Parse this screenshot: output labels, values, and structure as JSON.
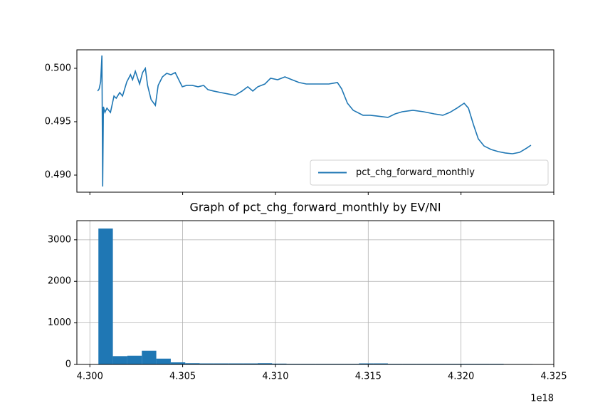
{
  "chart_data": [
    {
      "type": "line",
      "x": [
        4.30042,
        4.3005,
        4.30058,
        4.30065,
        4.30069,
        4.30073,
        4.30081,
        4.30092,
        4.30111,
        4.3013,
        4.30142,
        4.30161,
        4.30176,
        4.30199,
        4.30219,
        4.3023,
        4.30245,
        4.30268,
        4.30284,
        4.30299,
        4.30311,
        4.3033,
        4.30353,
        4.30368,
        4.30391,
        4.30414,
        4.30437,
        4.3046,
        4.30475,
        4.30498,
        4.30521,
        4.30552,
        4.30583,
        4.30613,
        4.30636,
        4.30667,
        4.30705,
        4.30744,
        4.30782,
        4.3082,
        4.30851,
        4.30878,
        4.30905,
        4.30943,
        4.30974,
        4.31012,
        4.31051,
        4.31089,
        4.31127,
        4.31166,
        4.31204,
        4.3125,
        4.31288,
        4.31334,
        4.31357,
        4.31388,
        4.31419,
        4.31472,
        4.31511,
        4.31549,
        4.31606,
        4.31645,
        4.31683,
        4.31741,
        4.31798,
        4.31856,
        4.31902,
        4.3194,
        4.31978,
        4.32017,
        4.3204,
        4.32067,
        4.32093,
        4.32124,
        4.32162,
        4.32201,
        4.32239,
        4.32277,
        4.32316,
        4.32354,
        4.32377
      ],
      "series": [
        {
          "name": "pct_chg_forward_monthly",
          "color": "#1f77b4",
          "values": [
            0.49787,
            0.49807,
            0.49873,
            0.5012,
            0.48893,
            0.4964,
            0.49587,
            0.49627,
            0.49587,
            0.4974,
            0.4972,
            0.49773,
            0.4974,
            0.49873,
            0.4994,
            0.49893,
            0.49973,
            0.49853,
            0.4996,
            0.5,
            0.4984,
            0.49707,
            0.49653,
            0.4984,
            0.4992,
            0.49953,
            0.4994,
            0.4996,
            0.49907,
            0.49827,
            0.4984,
            0.4984,
            0.49827,
            0.4984,
            0.498,
            0.49787,
            0.49773,
            0.4976,
            0.49747,
            0.49787,
            0.49827,
            0.49787,
            0.49827,
            0.49853,
            0.49907,
            0.49893,
            0.4992,
            0.49893,
            0.49867,
            0.49853,
            0.49853,
            0.49853,
            0.49853,
            0.49867,
            0.49807,
            0.49673,
            0.49607,
            0.4956,
            0.4956,
            0.49553,
            0.4954,
            0.49573,
            0.49593,
            0.49607,
            0.49593,
            0.49573,
            0.4956,
            0.49587,
            0.49627,
            0.49673,
            0.49627,
            0.49473,
            0.4934,
            0.49273,
            0.4924,
            0.4922,
            0.49207,
            0.492,
            0.49213,
            0.49253,
            0.4928
          ]
        }
      ],
      "xlim": [
        4.2993,
        4.325
      ],
      "ylim": [
        0.4884,
        0.50173
      ],
      "yticks": [
        {
          "value": 0.49,
          "label": "0.490"
        },
        {
          "value": 0.495,
          "label": "0.495"
        },
        {
          "value": 0.5,
          "label": "0.500"
        }
      ],
      "legend": "lower right"
    },
    {
      "type": "histogram",
      "title": "Graph of pct_chg_forward_monthly by EV/NI",
      "color": "#1f77b4",
      "bins": [
        4.30046,
        4.30124,
        4.30202,
        4.3028,
        4.30358,
        4.30436,
        4.30514,
        4.30592,
        4.3067,
        4.30748,
        4.30826,
        4.30904,
        4.30982,
        4.3106,
        4.31138,
        4.31216,
        4.31294,
        4.31372,
        4.3145,
        4.31528,
        4.31606,
        4.31684,
        4.31762,
        4.3184,
        4.31918,
        4.31996,
        4.32074,
        4.32152,
        4.3223,
        4.32308,
        4.32386
      ],
      "values": [
        3270,
        200,
        210,
        330,
        140,
        50,
        30,
        25,
        25,
        25,
        25,
        30,
        20,
        15,
        15,
        15,
        15,
        15,
        25,
        25,
        15,
        15,
        15,
        15,
        15,
        15,
        15,
        15,
        10,
        10
      ],
      "xlim": [
        4.2993,
        4.325
      ],
      "xticks": [
        {
          "value": 4.3,
          "label": "4.300"
        },
        {
          "value": 4.305,
          "label": "4.305"
        },
        {
          "value": 4.31,
          "label": "4.310"
        },
        {
          "value": 4.315,
          "label": "4.315"
        },
        {
          "value": 4.32,
          "label": "4.320"
        },
        {
          "value": 4.325,
          "label": "4.325"
        }
      ],
      "x_offset_label": "1e18",
      "ylim": [
        0,
        3460
      ],
      "yticks": [
        0,
        1000,
        2000,
        3000
      ],
      "grid": true
    }
  ]
}
